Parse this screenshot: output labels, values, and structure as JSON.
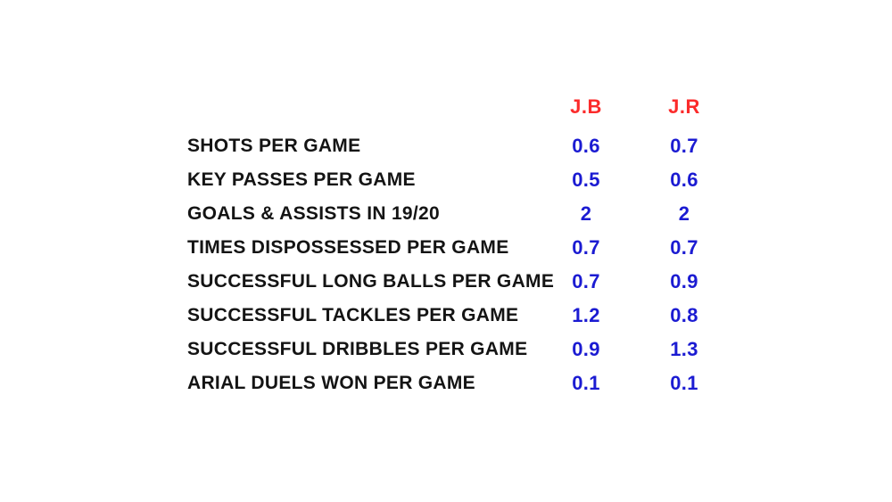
{
  "chart_data": {
    "type": "table",
    "title": "",
    "columns": [
      "",
      "J.B",
      "J.R"
    ],
    "categories": [
      "SHOTS PER GAME",
      "KEY PASSES PER GAME",
      "GOALS & ASSISTS IN 19/20",
      "TIMES DISPOSSESSED PER GAME",
      "SUCCESSFUL LONG BALLS PER GAME",
      "SUCCESSFUL TACKLES PER GAME",
      "SUCCESSFUL DRIBBLES PER GAME",
      "ARIAL DUELS WON PER GAME"
    ],
    "series": [
      {
        "name": "J.B",
        "values": [
          0.6,
          0.5,
          2,
          0.7,
          0.7,
          1.2,
          0.9,
          0.1
        ]
      },
      {
        "name": "J.R",
        "values": [
          0.7,
          0.6,
          2,
          0.7,
          0.9,
          0.8,
          1.3,
          0.1
        ]
      }
    ]
  },
  "table": {
    "headers": {
      "jb": "J.B",
      "jr": "J.R"
    },
    "rows": [
      {
        "label": "SHOTS PER GAME",
        "jb": "0.6",
        "jr": "0.7"
      },
      {
        "label": "KEY PASSES PER GAME",
        "jb": "0.5",
        "jr": "0.6"
      },
      {
        "label": "GOALS & ASSISTS IN 19/20",
        "jb": "2",
        "jr": "2"
      },
      {
        "label": "TIMES DISPOSSESSED PER GAME",
        "jb": "0.7",
        "jr": "0.7"
      },
      {
        "label": "SUCCESSFUL LONG BALLS PER GAME",
        "jb": "0.7",
        "jr": "0.9"
      },
      {
        "label": "SUCCESSFUL TACKLES PER GAME",
        "jb": "1.2",
        "jr": "0.8"
      },
      {
        "label": "SUCCESSFUL DRIBBLES PER GAME",
        "jb": "0.9",
        "jr": "1.3"
      },
      {
        "label": "ARIAL DUELS WON PER GAME",
        "jb": "0.1",
        "jr": "0.1"
      }
    ]
  },
  "colors": {
    "background": "#ffffff",
    "header_red": "#fb2b2b",
    "value_blue": "#1b1bd2",
    "label_black": "#141414"
  }
}
